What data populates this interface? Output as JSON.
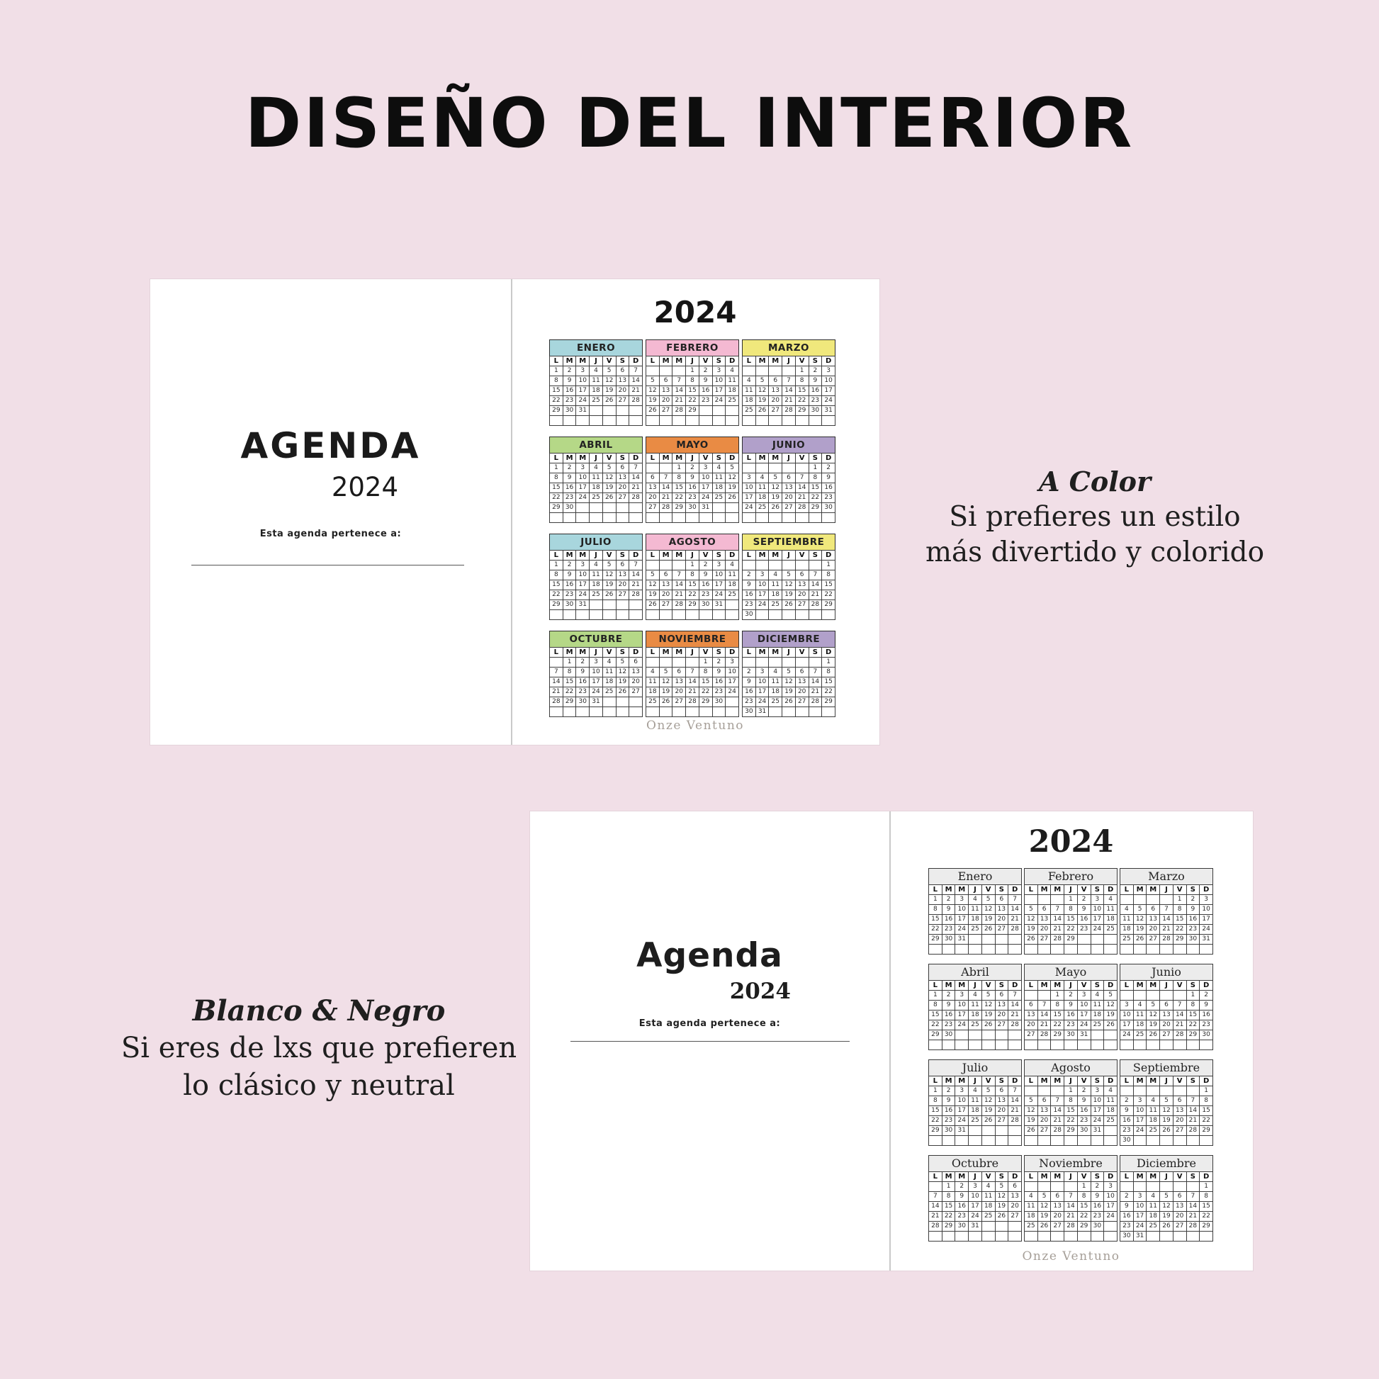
{
  "title": "DISEÑO DEL INTERIOR",
  "colors": {
    "background": "#f1dfe7",
    "teal": "#a8d6dd",
    "pink": "#f4b9d2",
    "yellow": "#f0e87c",
    "green": "#b5d887",
    "orange": "#e98b44",
    "purple": "#b1a0ca",
    "bw_header": "#ececec"
  },
  "day_headers": [
    "L",
    "M",
    "M",
    "J",
    "V",
    "S",
    "D"
  ],
  "months": [
    {
      "id": "enero",
      "name_upper": "ENERO",
      "name_title": "Enero",
      "color": "teal",
      "weeks": [
        [
          "1",
          "2",
          "3",
          "4",
          "5",
          "6",
          "7"
        ],
        [
          "8",
          "9",
          "10",
          "11",
          "12",
          "13",
          "14"
        ],
        [
          "15",
          "16",
          "17",
          "18",
          "19",
          "20",
          "21"
        ],
        [
          "22",
          "23",
          "24",
          "25",
          "26",
          "27",
          "28"
        ],
        [
          "29",
          "30",
          "31",
          "",
          "",
          "",
          ""
        ],
        [
          "",
          "",
          "",
          "",
          "",
          "",
          ""
        ]
      ]
    },
    {
      "id": "febrero",
      "name_upper": "FEBRERO",
      "name_title": "Febrero",
      "color": "pink",
      "weeks": [
        [
          "",
          "",
          "",
          "1",
          "2",
          "3",
          "4"
        ],
        [
          "5",
          "6",
          "7",
          "8",
          "9",
          "10",
          "11"
        ],
        [
          "12",
          "13",
          "14",
          "15",
          "16",
          "17",
          "18"
        ],
        [
          "19",
          "20",
          "21",
          "22",
          "23",
          "24",
          "25"
        ],
        [
          "26",
          "27",
          "28",
          "29",
          "",
          "",
          ""
        ],
        [
          "",
          "",
          "",
          "",
          "",
          "",
          ""
        ]
      ]
    },
    {
      "id": "marzo",
      "name_upper": "MARZO",
      "name_title": "Marzo",
      "color": "yellow",
      "weeks": [
        [
          "",
          "",
          "",
          "",
          "1",
          "2",
          "3"
        ],
        [
          "4",
          "5",
          "6",
          "7",
          "8",
          "9",
          "10"
        ],
        [
          "11",
          "12",
          "13",
          "14",
          "15",
          "16",
          "17"
        ],
        [
          "18",
          "19",
          "20",
          "21",
          "22",
          "23",
          "24"
        ],
        [
          "25",
          "26",
          "27",
          "28",
          "29",
          "30",
          "31"
        ],
        [
          "",
          "",
          "",
          "",
          "",
          "",
          ""
        ]
      ]
    },
    {
      "id": "abril",
      "name_upper": "ABRIL",
      "name_title": "Abril",
      "color": "green",
      "weeks": [
        [
          "1",
          "2",
          "3",
          "4",
          "5",
          "6",
          "7"
        ],
        [
          "8",
          "9",
          "10",
          "11",
          "12",
          "13",
          "14"
        ],
        [
          "15",
          "16",
          "17",
          "18",
          "19",
          "20",
          "21"
        ],
        [
          "22",
          "23",
          "24",
          "25",
          "26",
          "27",
          "28"
        ],
        [
          "29",
          "30",
          "",
          "",
          "",
          "",
          ""
        ],
        [
          "",
          "",
          "",
          "",
          "",
          "",
          ""
        ]
      ]
    },
    {
      "id": "mayo",
      "name_upper": "MAYO",
      "name_title": "Mayo",
      "color": "orange",
      "weeks": [
        [
          "",
          "",
          "1",
          "2",
          "3",
          "4",
          "5"
        ],
        [
          "6",
          "7",
          "8",
          "9",
          "10",
          "11",
          "12"
        ],
        [
          "13",
          "14",
          "15",
          "16",
          "17",
          "18",
          "19"
        ],
        [
          "20",
          "21",
          "22",
          "23",
          "24",
          "25",
          "26"
        ],
        [
          "27",
          "28",
          "29",
          "30",
          "31",
          "",
          ""
        ],
        [
          "",
          "",
          "",
          "",
          "",
          "",
          ""
        ]
      ]
    },
    {
      "id": "junio",
      "name_upper": "JUNIO",
      "name_title": "Junio",
      "color": "purple",
      "weeks": [
        [
          "",
          "",
          "",
          "",
          "",
          "1",
          "2"
        ],
        [
          "3",
          "4",
          "5",
          "6",
          "7",
          "8",
          "9"
        ],
        [
          "10",
          "11",
          "12",
          "13",
          "14",
          "15",
          "16"
        ],
        [
          "17",
          "18",
          "19",
          "20",
          "21",
          "22",
          "23"
        ],
        [
          "24",
          "25",
          "26",
          "27",
          "28",
          "29",
          "30"
        ],
        [
          "",
          "",
          "",
          "",
          "",
          "",
          ""
        ]
      ]
    },
    {
      "id": "julio",
      "name_upper": "JULIO",
      "name_title": "Julio",
      "color": "teal",
      "weeks": [
        [
          "1",
          "2",
          "3",
          "4",
          "5",
          "6",
          "7"
        ],
        [
          "8",
          "9",
          "10",
          "11",
          "12",
          "13",
          "14"
        ],
        [
          "15",
          "16",
          "17",
          "18",
          "19",
          "20",
          "21"
        ],
        [
          "22",
          "23",
          "24",
          "25",
          "26",
          "27",
          "28"
        ],
        [
          "29",
          "30",
          "31",
          "",
          "",
          "",
          ""
        ],
        [
          "",
          "",
          "",
          "",
          "",
          "",
          ""
        ]
      ]
    },
    {
      "id": "agosto",
      "name_upper": "AGOSTO",
      "name_title": "Agosto",
      "color": "pink",
      "weeks": [
        [
          "",
          "",
          "",
          "1",
          "2",
          "3",
          "4"
        ],
        [
          "5",
          "6",
          "7",
          "8",
          "9",
          "10",
          "11"
        ],
        [
          "12",
          "13",
          "14",
          "15",
          "16",
          "17",
          "18"
        ],
        [
          "19",
          "20",
          "21",
          "22",
          "23",
          "24",
          "25"
        ],
        [
          "26",
          "27",
          "28",
          "29",
          "30",
          "31",
          ""
        ],
        [
          "",
          "",
          "",
          "",
          "",
          "",
          ""
        ]
      ]
    },
    {
      "id": "septiembre",
      "name_upper": "SEPTIEMBRE",
      "name_title": "Septiembre",
      "color": "yellow",
      "weeks": [
        [
          "",
          "",
          "",
          "",
          "",
          "",
          "1"
        ],
        [
          "2",
          "3",
          "4",
          "5",
          "6",
          "7",
          "8"
        ],
        [
          "9",
          "10",
          "11",
          "12",
          "13",
          "14",
          "15"
        ],
        [
          "16",
          "17",
          "18",
          "19",
          "20",
          "21",
          "22"
        ],
        [
          "23",
          "24",
          "25",
          "26",
          "27",
          "28",
          "29"
        ],
        [
          "30",
          "",
          "",
          "",
          "",
          "",
          ""
        ]
      ]
    },
    {
      "id": "octubre",
      "name_upper": "OCTUBRE",
      "name_title": "Octubre",
      "color": "green",
      "weeks": [
        [
          "",
          "1",
          "2",
          "3",
          "4",
          "5",
          "6"
        ],
        [
          "7",
          "8",
          "9",
          "10",
          "11",
          "12",
          "13"
        ],
        [
          "14",
          "15",
          "16",
          "17",
          "18",
          "19",
          "20"
        ],
        [
          "21",
          "22",
          "23",
          "24",
          "25",
          "26",
          "27"
        ],
        [
          "28",
          "29",
          "30",
          "31",
          "",
          "",
          ""
        ],
        [
          "",
          "",
          "",
          "",
          "",
          "",
          ""
        ]
      ]
    },
    {
      "id": "noviembre",
      "name_upper": "NOVIEMBRE",
      "name_title": "Noviembre",
      "color": "orange",
      "weeks": [
        [
          "",
          "",
          "",
          "",
          "1",
          "2",
          "3"
        ],
        [
          "4",
          "5",
          "6",
          "7",
          "8",
          "9",
          "10"
        ],
        [
          "11",
          "12",
          "13",
          "14",
          "15",
          "16",
          "17"
        ],
        [
          "18",
          "19",
          "20",
          "21",
          "22",
          "23",
          "24"
        ],
        [
          "25",
          "26",
          "27",
          "28",
          "29",
          "30",
          ""
        ],
        [
          "",
          "",
          "",
          "",
          "",
          "",
          ""
        ]
      ]
    },
    {
      "id": "diciembre",
      "name_upper": "DICIEMBRE",
      "name_title": "Diciembre",
      "color": "purple",
      "weeks": [
        [
          "",
          "",
          "",
          "",
          "",
          "",
          "1"
        ],
        [
          "2",
          "3",
          "4",
          "5",
          "6",
          "7",
          "8"
        ],
        [
          "9",
          "10",
          "11",
          "12",
          "13",
          "14",
          "15"
        ],
        [
          "16",
          "17",
          "18",
          "19",
          "20",
          "21",
          "22"
        ],
        [
          "23",
          "24",
          "25",
          "26",
          "27",
          "28",
          "29"
        ],
        [
          "30",
          "31",
          "",
          "",
          "",
          "",
          ""
        ]
      ]
    }
  ],
  "color_spread": {
    "cover_title": "AGENDA",
    "cover_year": "2024",
    "belongs_label": "Esta agenda pertenece a:",
    "year_title": "2024",
    "logo": "Onze Ventuno"
  },
  "bw_spread": {
    "cover_title": "Agenda",
    "cover_year": "2024",
    "belongs_label": "Esta agenda pertenece a:",
    "year_title": "2024",
    "logo": "Onze Ventuno"
  },
  "annotations": {
    "color": {
      "heading": "A Color",
      "line1": "Si prefieres un estilo",
      "line2": "más divertido y colorido"
    },
    "bw": {
      "heading": "Blanco & Negro",
      "line1": "Si eres de lxs que prefieren",
      "line2": "lo clásico y neutral"
    }
  }
}
